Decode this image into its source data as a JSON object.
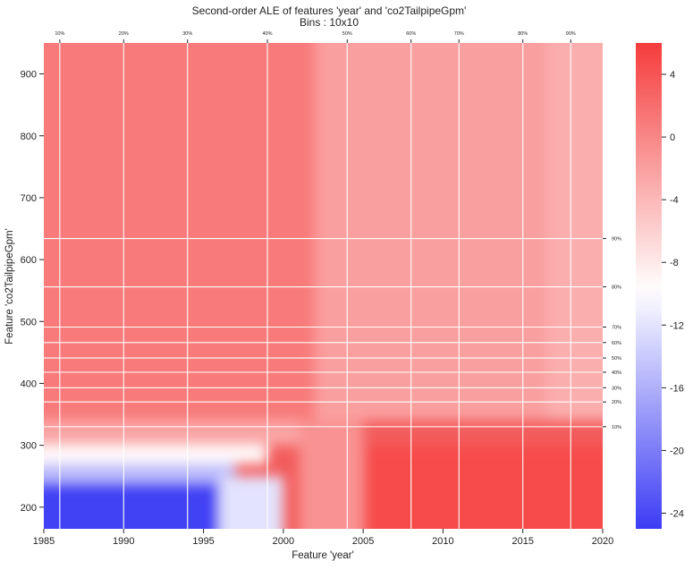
{
  "chart_data": {
    "type": "heatmap",
    "title": "Second-order ALE of features 'year' and 'co2TailpipeGpm'",
    "subtitle": "Bins : 10x10",
    "xlabel": "Feature 'year'",
    "ylabel": "Feature 'co2TailpipeGpm'",
    "xlim": [
      1985,
      2020
    ],
    "ylim": [
      165,
      950
    ],
    "x_ticks": [
      1985,
      1990,
      1995,
      2000,
      2005,
      2010,
      2015,
      2020
    ],
    "y_ticks": [
      200,
      300,
      400,
      500,
      600,
      700,
      800,
      900
    ],
    "x_quantiles": [
      {
        "label": "10%",
        "value": 1986
      },
      {
        "label": "20%",
        "value": 1990
      },
      {
        "label": "30%",
        "value": 1994
      },
      {
        "label": "40%",
        "value": 1999
      },
      {
        "label": "50%",
        "value": 2004
      },
      {
        "label": "60%",
        "value": 2008
      },
      {
        "label": "70%",
        "value": 2011
      },
      {
        "label": "80%",
        "value": 2015
      },
      {
        "label": "90%",
        "value": 2018
      }
    ],
    "y_quantiles": [
      {
        "label": "10%",
        "value": 330
      },
      {
        "label": "20%",
        "value": 370
      },
      {
        "label": "30%",
        "value": 393
      },
      {
        "label": "40%",
        "value": 418
      },
      {
        "label": "50%",
        "value": 441
      },
      {
        "label": "60%",
        "value": 466
      },
      {
        "label": "70%",
        "value": 491
      },
      {
        "label": "80%",
        "value": 556
      },
      {
        "label": "90%",
        "value": 634
      }
    ],
    "colorbar": {
      "min": -25,
      "max": 6,
      "ticks": [
        -24,
        -20,
        -16,
        -12,
        -8,
        -4,
        0,
        4
      ],
      "colors": [
        "#3c3cf5",
        "#ffffff",
        "#f53c3c"
      ],
      "center": -9.8
    },
    "grid": true
  }
}
